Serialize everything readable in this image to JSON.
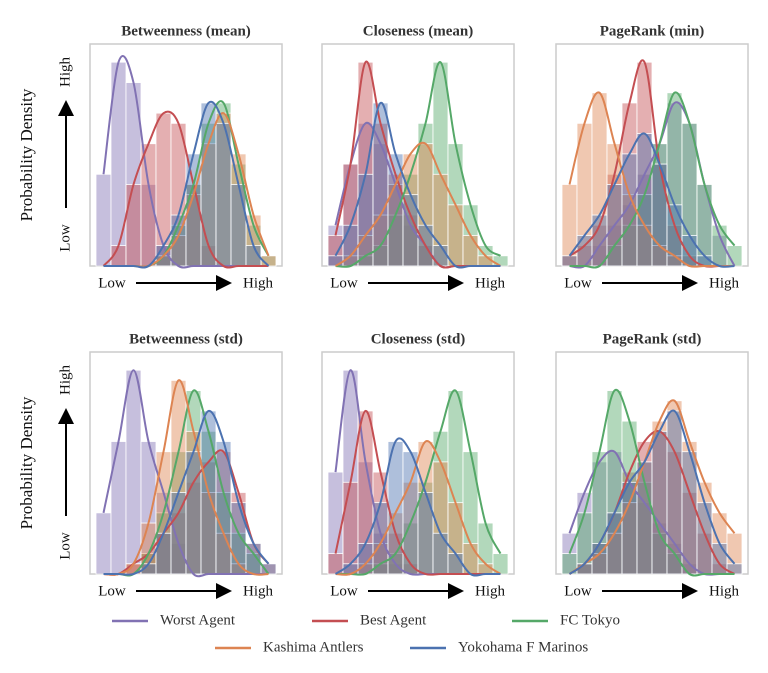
{
  "legend": [
    {
      "name": "Worst Agent",
      "color": "#8172b3"
    },
    {
      "name": "Best Agent",
      "color": "#c44e52"
    },
    {
      "name": "FC Tokyo",
      "color": "#55a868"
    },
    {
      "name": "Kashima Antlers",
      "color": "#dd8452"
    },
    {
      "name": "Yokohama F Marinos",
      "color": "#4c72b0"
    }
  ],
  "chart_data": [
    {
      "type": "histogram",
      "title": "Betweenness (mean)",
      "xlabel_low": "Low",
      "xlabel_high": "High",
      "ylabel": "Probability Density",
      "ylabel_low": "Low",
      "ylabel_high": "High",
      "ylim": [
        0,
        105
      ],
      "series": [
        {
          "values": [
            45,
            100,
            90,
            40,
            10,
            0,
            0,
            0,
            0,
            0,
            0,
            0
          ]
        },
        {
          "values": [
            0,
            10,
            40,
            60,
            75,
            70,
            40,
            10,
            0,
            0,
            0,
            0
          ]
        },
        {
          "values": [
            0,
            0,
            0,
            0,
            5,
            20,
            40,
            70,
            80,
            50,
            20,
            5
          ]
        },
        {
          "values": [
            0,
            0,
            0,
            0,
            5,
            15,
            35,
            60,
            75,
            55,
            25,
            5
          ]
        },
        {
          "values": [
            0,
            0,
            0,
            0,
            10,
            25,
            55,
            80,
            70,
            40,
            10,
            0
          ]
        }
      ]
    },
    {
      "type": "histogram",
      "title": "Closeness (mean)",
      "xlabel_low": "Low",
      "xlabel_high": "High",
      "ylim": [
        0,
        105
      ],
      "series": [
        {
          "values": [
            20,
            50,
            70,
            60,
            40,
            20,
            10,
            0,
            0,
            0,
            0,
            0
          ]
        },
        {
          "values": [
            15,
            50,
            100,
            70,
            45,
            25,
            10,
            0,
            0,
            0,
            0,
            0
          ]
        },
        {
          "values": [
            0,
            0,
            5,
            10,
            25,
            45,
            70,
            100,
            60,
            30,
            10,
            5
          ]
        },
        {
          "values": [
            0,
            5,
            15,
            25,
            40,
            55,
            60,
            45,
            30,
            15,
            5,
            0
          ]
        },
        {
          "values": [
            5,
            20,
            45,
            80,
            55,
            35,
            20,
            10,
            0,
            0,
            0,
            0
          ]
        }
      ]
    },
    {
      "type": "histogram",
      "title": "PageRank (min)",
      "xlabel_low": "Low",
      "xlabel_high": "High",
      "ylim": [
        0,
        105
      ],
      "series": [
        {
          "values": [
            0,
            0,
            10,
            20,
            30,
            45,
            60,
            80,
            70,
            40,
            15,
            0
          ]
        },
        {
          "values": [
            5,
            10,
            20,
            45,
            80,
            100,
            50,
            20,
            5,
            0,
            0,
            0
          ]
        },
        {
          "values": [
            0,
            0,
            0,
            10,
            20,
            35,
            60,
            85,
            70,
            40,
            20,
            10
          ]
        },
        {
          "values": [
            40,
            70,
            85,
            60,
            35,
            20,
            10,
            5,
            0,
            0,
            0,
            0
          ]
        },
        {
          "values": [
            5,
            15,
            25,
            40,
            55,
            65,
            50,
            30,
            15,
            5,
            0,
            0
          ]
        }
      ]
    },
    {
      "type": "histogram",
      "title": "Betweenness (std)",
      "xlabel_low": "Low",
      "xlabel_high": "High",
      "ylabel": "Probability Density",
      "ylabel_low": "Low",
      "ylabel_high": "High",
      "ylim": [
        0,
        105
      ],
      "series": [
        {
          "values": [
            30,
            65,
            100,
            65,
            40,
            15,
            0,
            0,
            0,
            0,
            0,
            0
          ]
        },
        {
          "values": [
            0,
            0,
            5,
            10,
            20,
            30,
            45,
            55,
            60,
            40,
            15,
            5
          ]
        },
        {
          "values": [
            0,
            0,
            0,
            10,
            30,
            60,
            90,
            70,
            40,
            20,
            10,
            0
          ]
        },
        {
          "values": [
            0,
            0,
            5,
            25,
            60,
            95,
            70,
            40,
            20,
            5,
            0,
            0
          ]
        },
        {
          "values": [
            0,
            0,
            0,
            5,
            20,
            40,
            60,
            80,
            65,
            35,
            15,
            5
          ]
        }
      ]
    },
    {
      "type": "histogram",
      "title": "Closeness (std)",
      "xlabel_low": "Low",
      "xlabel_high": "High",
      "ylim": [
        0,
        105
      ],
      "series": [
        {
          "values": [
            50,
            100,
            55,
            20,
            5,
            0,
            0,
            0,
            0,
            0,
            0,
            0
          ]
        },
        {
          "values": [
            10,
            45,
            80,
            50,
            20,
            5,
            0,
            0,
            0,
            0,
            0,
            0
          ]
        },
        {
          "values": [
            0,
            0,
            0,
            5,
            10,
            25,
            45,
            70,
            90,
            60,
            25,
            10
          ]
        },
        {
          "values": [
            0,
            0,
            5,
            15,
            30,
            45,
            65,
            55,
            35,
            15,
            5,
            0
          ]
        },
        {
          "values": [
            0,
            5,
            15,
            35,
            65,
            60,
            40,
            20,
            10,
            0,
            0,
            0
          ]
        }
      ]
    },
    {
      "type": "histogram",
      "title": "PageRank (std)",
      "xlabel_low": "Low",
      "xlabel_high": "High",
      "ylim": [
        0,
        105
      ],
      "series": [
        {
          "values": [
            20,
            40,
            55,
            60,
            45,
            35,
            25,
            15,
            5,
            0,
            0,
            0
          ]
        },
        {
          "values": [
            0,
            5,
            15,
            30,
            50,
            65,
            70,
            60,
            40,
            20,
            5,
            0
          ]
        },
        {
          "values": [
            10,
            30,
            60,
            90,
            75,
            45,
            20,
            10,
            0,
            0,
            0,
            0
          ]
        },
        {
          "values": [
            0,
            5,
            10,
            20,
            35,
            55,
            75,
            85,
            65,
            45,
            30,
            20
          ]
        },
        {
          "values": [
            0,
            5,
            15,
            30,
            45,
            55,
            70,
            80,
            60,
            35,
            15,
            5
          ]
        }
      ]
    }
  ]
}
